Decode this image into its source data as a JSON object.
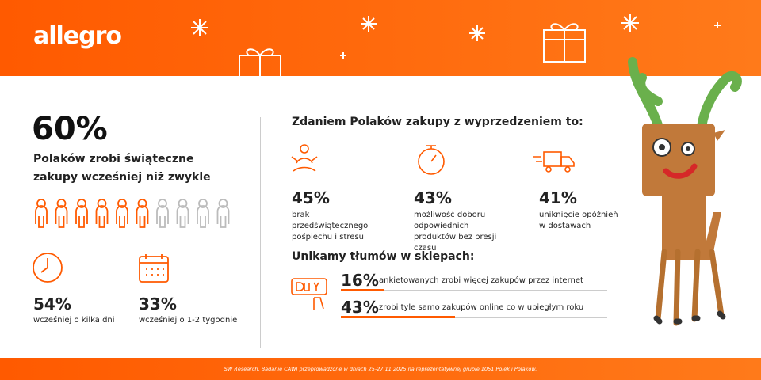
{
  "header": {
    "logo": "allegro"
  },
  "left": {
    "stat": "60%",
    "subtitle_lines": [
      "Polaków zrobi świąteczne",
      "zakupy wcześniej niż zwykle"
    ],
    "items": [
      {
        "value": "54%",
        "label": "wcześniej o kilka dni"
      },
      {
        "value": "33%",
        "label": "wcześniej o 1-2 tygodnie"
      }
    ]
  },
  "right": {
    "heading": "Zdaniem Polaków zakupy z wyprzedzeniem to:",
    "items": [
      {
        "value": "45%",
        "label": "brak przedświątecznego pośpiechu i stresu"
      },
      {
        "value": "43%",
        "label": "możliwość doboru odpowiednich produktów bez presji czasu"
      },
      {
        "value": "41%",
        "label": "uniknięcie opóźnień w dostawach"
      }
    ],
    "heading2": "Unikamy tłumów w sklepach:",
    "bars": [
      {
        "value": 16,
        "label": "16%",
        "text": "ankietowanych zrobi więcej zakupów przez internet"
      },
      {
        "value": 43,
        "label": "43%",
        "text": "zrobi tyle samo zakupów online co w ubiegłym roku"
      }
    ]
  },
  "footer": {
    "note": "SW Research. Badanie CAWI przeprowadzone w dniach 25-27.11.2025 na reprezentatywnej grupie 1051 Polek i Polaków."
  }
}
